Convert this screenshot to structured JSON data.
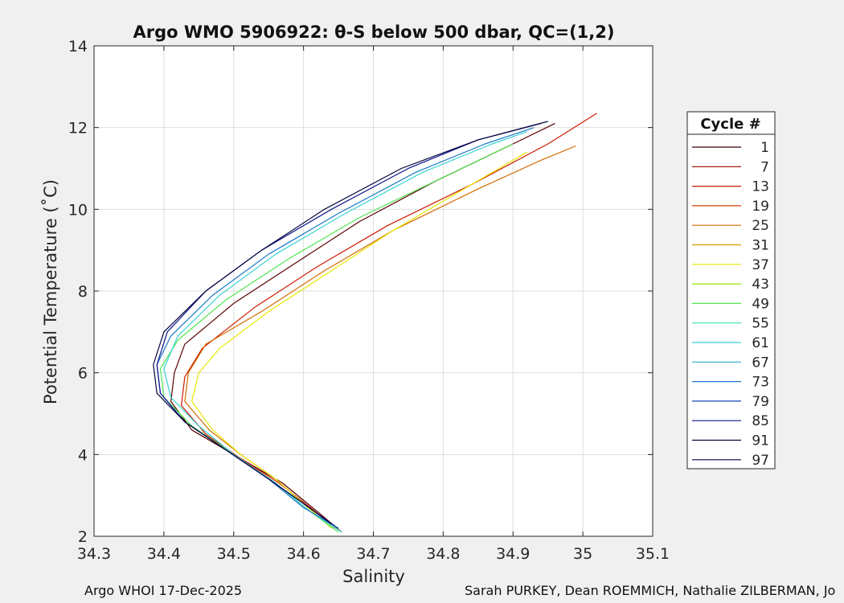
{
  "figure": {
    "footer_left": "Argo WHOI 17-Dec-2025",
    "footer_right": "Sarah PURKEY, Dean ROEMMICH, Nathalie ZILBERMAN, Jo"
  },
  "chart_data": {
    "type": "line",
    "title": "Argo WMO 5906922: θ-S below 500 dbar,  QC=(1,2)",
    "xlabel": "Salinity",
    "ylabel": "Potential Temperature (˚C)",
    "xlim": [
      34.3,
      35.1
    ],
    "ylim": [
      2,
      14
    ],
    "xticks": [
      34.3,
      34.4,
      34.5,
      34.6,
      34.7,
      34.8,
      34.9,
      35,
      35.1
    ],
    "xtick_labels": [
      "34.3",
      "34.4",
      "34.5",
      "34.6",
      "34.7",
      "34.8",
      "34.9",
      "35",
      "35.1"
    ],
    "yticks": [
      2,
      4,
      6,
      8,
      10,
      12,
      14
    ],
    "ytick_labels": [
      "2",
      "4",
      "6",
      "8",
      "10",
      "12",
      "14"
    ],
    "grid": true,
    "legend": {
      "title": "Cycle #",
      "position": "outside-right",
      "entries": [
        "1",
        "7",
        "13",
        "19",
        "25",
        "31",
        "37",
        "43",
        "49",
        "55",
        "61",
        "67",
        "73",
        "79",
        "85",
        "91",
        "97"
      ],
      "colors": [
        "#3a0000",
        "#9a0000",
        "#cc1a00",
        "#d43a00",
        "#d46a00",
        "#d4a000",
        "#e8e800",
        "#9ae600",
        "#50e650",
        "#3ae6a0",
        "#3ad2d2",
        "#2eaad2",
        "#1a78c8",
        "#1446b4",
        "#0a148c",
        "#05053c",
        "#000050"
      ]
    },
    "series": [
      {
        "color": "#5a0000",
        "x": [
          34.655,
          34.62,
          34.57,
          34.5,
          34.44,
          34.41,
          34.415,
          34.43,
          34.5,
          34.59,
          34.68,
          34.79,
          34.9,
          34.96
        ],
        "y": [
          2.1,
          2.6,
          3.3,
          4.0,
          4.6,
          5.3,
          6.0,
          6.7,
          7.7,
          8.7,
          9.7,
          10.7,
          11.6,
          12.1
        ]
      },
      {
        "color": "#cc1a00",
        "x": [
          34.645,
          34.61,
          34.565,
          34.51,
          34.46,
          34.425,
          34.43,
          34.455,
          34.53,
          34.62,
          34.72,
          34.84,
          34.95,
          35.02
        ],
        "y": [
          2.2,
          2.7,
          3.3,
          3.9,
          4.5,
          5.2,
          5.9,
          6.6,
          7.6,
          8.6,
          9.6,
          10.6,
          11.6,
          12.35
        ]
      },
      {
        "color": "#d46a00",
        "x": [
          34.64,
          34.6,
          34.56,
          34.51,
          34.465,
          34.43,
          34.435,
          34.46,
          34.54,
          34.63,
          34.73,
          34.85,
          34.94,
          34.99
        ],
        "y": [
          2.2,
          2.8,
          3.4,
          4.0,
          4.6,
          5.3,
          6.0,
          6.7,
          7.5,
          8.5,
          9.5,
          10.5,
          11.2,
          11.55
        ]
      },
      {
        "color": "#e8e800",
        "x": [
          34.64,
          34.6,
          34.56,
          34.51,
          34.47,
          34.44,
          34.45,
          34.48,
          34.55,
          34.64,
          34.73,
          34.83,
          34.92
        ],
        "y": [
          2.2,
          2.8,
          3.4,
          4.0,
          4.6,
          5.3,
          6.0,
          6.6,
          7.5,
          8.5,
          9.5,
          10.5,
          11.4
        ]
      },
      {
        "color": "#50e650",
        "x": [
          34.65,
          34.61,
          34.56,
          34.5,
          34.44,
          34.4,
          34.395,
          34.42,
          34.49,
          34.58,
          34.68,
          34.79,
          34.9
        ],
        "y": [
          2.1,
          2.6,
          3.3,
          4.0,
          4.7,
          5.4,
          6.1,
          6.8,
          7.8,
          8.8,
          9.8,
          10.7,
          11.6
        ]
      },
      {
        "color": "#3ad2d2",
        "x": [
          34.655,
          34.61,
          34.56,
          34.5,
          34.45,
          34.41,
          34.4,
          34.42,
          34.48,
          34.56,
          34.66,
          34.77,
          34.87,
          34.92
        ],
        "y": [
          2.1,
          2.6,
          3.3,
          4.0,
          4.7,
          5.4,
          6.1,
          6.9,
          7.9,
          8.9,
          9.9,
          10.9,
          11.6,
          11.9
        ]
      },
      {
        "color": "#1a78c8",
        "x": [
          34.65,
          34.6,
          34.55,
          34.49,
          34.43,
          34.395,
          34.39,
          34.41,
          34.47,
          34.55,
          34.65,
          34.76,
          34.86,
          34.93
        ],
        "y": [
          2.2,
          2.7,
          3.4,
          4.1,
          4.8,
          5.5,
          6.2,
          6.9,
          7.9,
          8.9,
          9.9,
          10.9,
          11.6,
          12.0
        ]
      },
      {
        "color": "#0a148c",
        "x": [
          34.645,
          34.6,
          34.55,
          34.49,
          34.43,
          34.395,
          34.39,
          34.405,
          34.46,
          34.54,
          34.64,
          34.75,
          34.85,
          34.94
        ],
        "y": [
          2.25,
          2.8,
          3.4,
          4.1,
          4.8,
          5.5,
          6.2,
          7.0,
          8.0,
          9.0,
          10.0,
          11.0,
          11.7,
          12.1
        ]
      },
      {
        "color": "#05053c",
        "x": [
          34.64,
          34.6,
          34.55,
          34.49,
          34.43,
          34.39,
          34.385,
          34.4,
          34.46,
          34.54,
          34.63,
          34.74,
          34.85,
          34.95
        ],
        "y": [
          2.3,
          2.8,
          3.4,
          4.1,
          4.8,
          5.5,
          6.2,
          7.0,
          8.0,
          9.0,
          10.0,
          11.0,
          11.7,
          12.15
        ]
      }
    ]
  }
}
